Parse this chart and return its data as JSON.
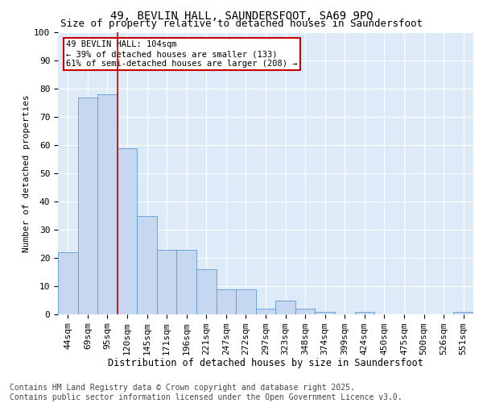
{
  "title1": "49, BEVLIN HALL, SAUNDERSFOOT, SA69 9PQ",
  "title2": "Size of property relative to detached houses in Saundersfoot",
  "xlabel": "Distribution of detached houses by size in Saundersfoot",
  "ylabel": "Number of detached properties",
  "categories": [
    "44sqm",
    "69sqm",
    "95sqm",
    "120sqm",
    "145sqm",
    "171sqm",
    "196sqm",
    "221sqm",
    "247sqm",
    "272sqm",
    "297sqm",
    "323sqm",
    "348sqm",
    "374sqm",
    "399sqm",
    "424sqm",
    "450sqm",
    "475sqm",
    "500sqm",
    "526sqm",
    "551sqm"
  ],
  "values": [
    22,
    77,
    78,
    59,
    35,
    23,
    23,
    16,
    9,
    9,
    2,
    5,
    2,
    1,
    0,
    1,
    0,
    0,
    0,
    0,
    1
  ],
  "bar_color": "#c5d8f0",
  "bar_edge_color": "#5b9bd5",
  "vline_x": 2.5,
  "vline_color": "#cc0000",
  "annotation_text": "49 BEVLIN HALL: 104sqm\n← 39% of detached houses are smaller (133)\n61% of semi-detached houses are larger (208) →",
  "annotation_box_color": "#ffffff",
  "annotation_box_edge": "#cc0000",
  "ylim": [
    0,
    100
  ],
  "yticks": [
    0,
    10,
    20,
    30,
    40,
    50,
    60,
    70,
    80,
    90,
    100
  ],
  "footer1": "Contains HM Land Registry data © Crown copyright and database right 2025.",
  "footer2": "Contains public sector information licensed under the Open Government Licence v3.0.",
  "bg_color": "#ddeaf8",
  "fig_bg_color": "#ffffff",
  "title1_fontsize": 10,
  "title2_fontsize": 9,
  "xlabel_fontsize": 8.5,
  "ylabel_fontsize": 8,
  "tick_fontsize": 8,
  "footer_fontsize": 7,
  "annot_fontsize": 7.5
}
